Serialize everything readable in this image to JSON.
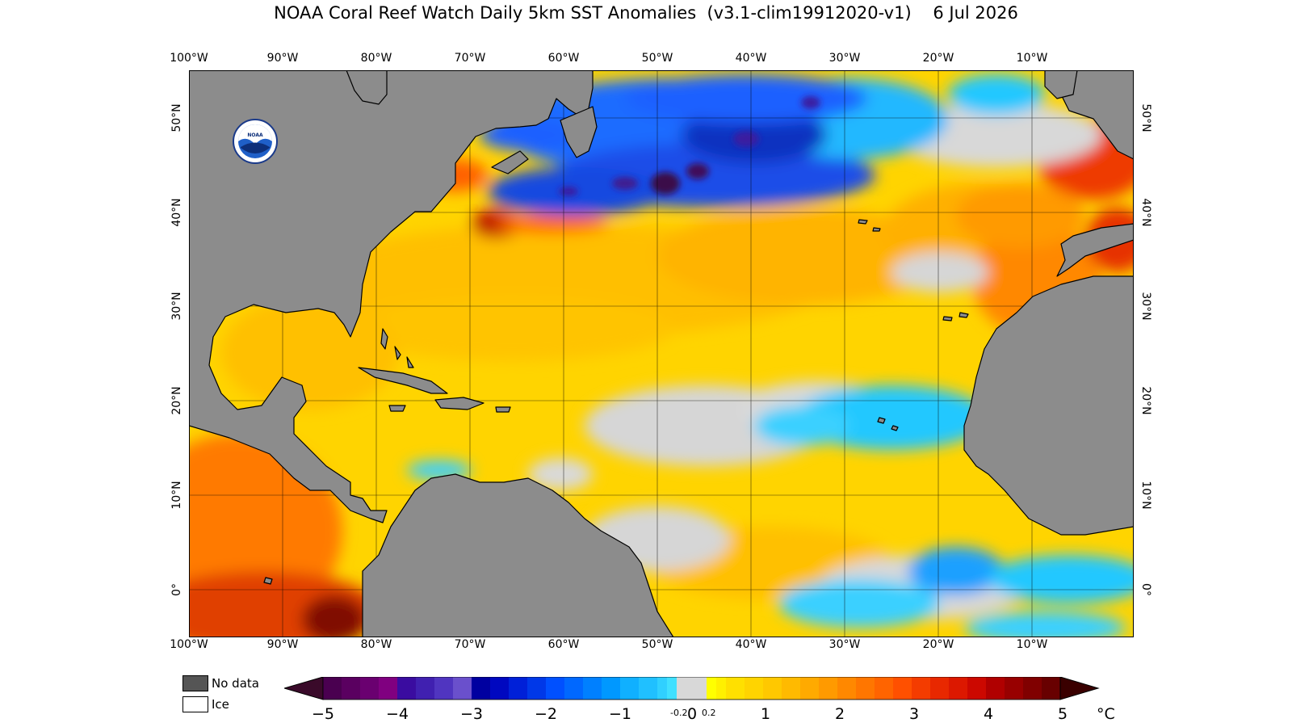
{
  "title": "NOAA Coral Reef Watch Daily 5km SST Anomalies  (v3.1-clim19912020-v1)    6 Jul 2026",
  "logo_text": "NOAA",
  "lon_labels": [
    "100°W",
    "90°W",
    "80°W",
    "70°W",
    "60°W",
    "50°W",
    "40°W",
    "30°W",
    "20°W",
    "10°W"
  ],
  "lat_labels": [
    "50°N",
    "40°N",
    "30°N",
    "20°N",
    "10°N",
    "0°"
  ],
  "legend": {
    "no_data": "No data",
    "ice": "Ice",
    "no_data_color": "#555555",
    "ice_color": "#ffffff"
  },
  "colorbar": {
    "ticks": [
      "−5",
      "−4",
      "−3",
      "−2",
      "−1",
      "0",
      "1",
      "2",
      "3",
      "4",
      "5"
    ],
    "small_ticks": [
      "-0.2",
      "0.2"
    ],
    "unit": "°C",
    "range": [
      -5,
      5
    ]
  },
  "colors": {
    "land": "#8c8c8c",
    "neutral": "#d8d8d8",
    "warm": "#ffd200",
    "cold": "#1a3fe0"
  }
}
